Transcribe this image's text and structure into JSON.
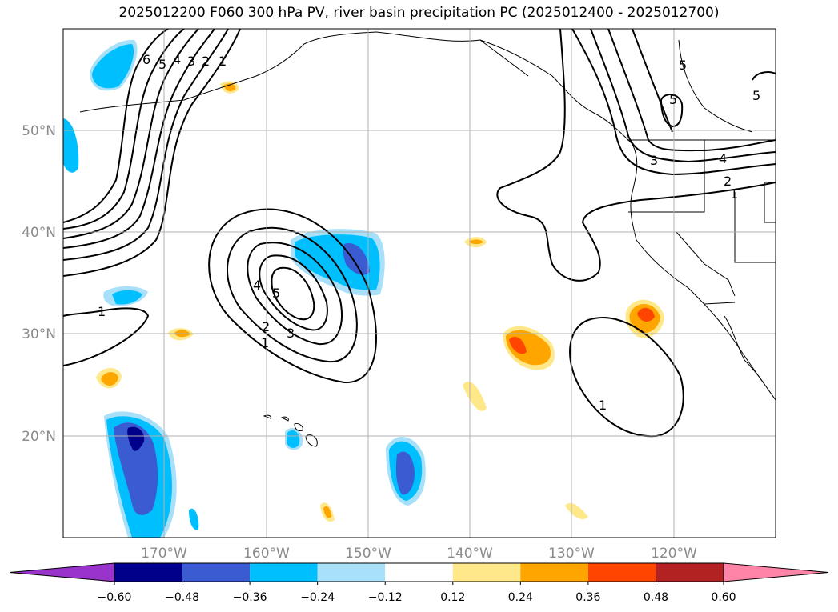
{
  "title": "2025012200 F060 300 hPa PV, river basin precipitation PC (2025012400 - 2025012700)",
  "lon_ticks": [
    "170°W",
    "160°W",
    "150°W",
    "140°W",
    "130°W",
    "120°W"
  ],
  "lat_ticks": [
    "50°N",
    "40°N",
    "30°N",
    "20°N"
  ],
  "colorbar": {
    "levels": [
      "-0.60",
      "-0.48",
      "-0.36",
      "-0.24",
      "-0.12",
      "0.12",
      "0.24",
      "0.36",
      "0.48",
      "0.60"
    ],
    "colors": [
      "#9933cc",
      "#00008b",
      "#3a5bd1",
      "#00bfff",
      "#a8e0fa",
      "#ffffff",
      "#ffe88a",
      "#ffa500",
      "#ff4500",
      "#b22222",
      "#ff85a8"
    ]
  },
  "contour_labels": [
    "6",
    "5",
    "4",
    "3",
    "2",
    "1",
    "5",
    "4",
    "3",
    "2",
    "1",
    "1",
    "1",
    "3",
    "4",
    "2",
    "1",
    "5",
    "5",
    "5"
  ],
  "map": {
    "projection": "cylindrical",
    "lon_range": [
      -180,
      -110
    ],
    "lat_range": [
      10,
      60
    ],
    "gridlines": true,
    "land_colors": {
      "coast": "#000000",
      "grid": "#b0b0b0"
    }
  }
}
